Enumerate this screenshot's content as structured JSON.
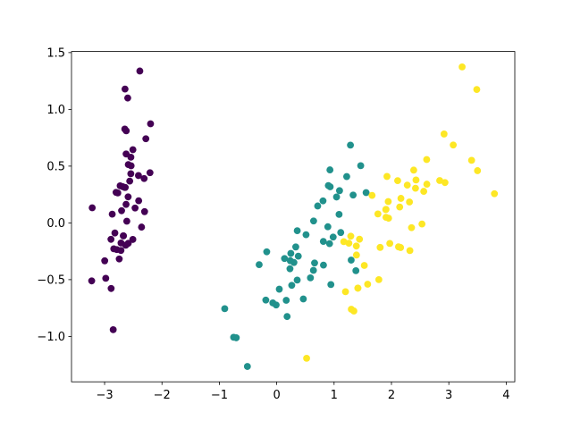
{
  "chart_data": {
    "type": "scatter",
    "xlim": [
      -3.577,
      4.15
    ],
    "ylim": [
      -1.4,
      1.51
    ],
    "xticks": [
      {
        "value": -3,
        "label": "−3"
      },
      {
        "value": -2,
        "label": "−2"
      },
      {
        "value": -1,
        "label": "−1"
      },
      0,
      1,
      2,
      3,
      4
    ],
    "yticks": [
      {
        "value": -1,
        "label": "−1.0"
      },
      {
        "value": -0.5,
        "label": "−0.5"
      },
      {
        "value": 0,
        "label": "0.0"
      },
      0.5,
      {
        "value": 1,
        "label": "1.0"
      },
      1.5
    ],
    "series": [
      {
        "color": "#440154",
        "x": [
          -2.684,
          -2.714,
          -2.889,
          -2.745,
          -2.729,
          -2.281,
          -2.821,
          -2.626,
          -2.886,
          -2.672,
          -2.507,
          -2.613,
          -2.787,
          -3.225,
          -2.644,
          -2.386,
          -2.623,
          -2.648,
          -2.199,
          -2.587,
          -2.311,
          -2.543,
          -3.216,
          -2.303,
          -2.356,
          -2.508,
          -2.469,
          -2.562,
          -2.64,
          -2.632,
          -2.588,
          -2.41,
          -2.648,
          -2.597,
          -2.673,
          -2.867,
          -2.625,
          -2.8,
          -2.98,
          -2.59,
          -2.77,
          -2.85,
          -2.998,
          -2.406,
          -2.209,
          -2.715,
          -2.538,
          -2.84,
          -2.542,
          -2.704
        ],
        "values": [
          0.319,
          -0.177,
          -0.145,
          -0.318,
          0.327,
          0.741,
          -0.089,
          0.163,
          -0.578,
          -0.114,
          0.645,
          0.015,
          -0.235,
          -0.511,
          1.179,
          1.338,
          0.811,
          0.312,
          0.873,
          0.514,
          0.391,
          0.433,
          0.133,
          0.099,
          -0.037,
          -0.146,
          0.131,
          0.368,
          0.312,
          -0.197,
          -0.18,
          0.417,
          0.827,
          1.1,
          -0.114,
          0.077,
          0.607,
          0.269,
          -0.488,
          0.229,
          0.264,
          -0.941,
          -0.334,
          0.195,
          0.442,
          -0.243,
          0.503,
          -0.228,
          0.579,
          0.107
        ]
      },
      {
        "color": "#21918c",
        "x": [
          1.285,
          0.932,
          1.464,
          0.181,
          1.087,
          0.64,
          1.095,
          -0.751,
          1.043,
          -0.01,
          -0.511,
          0.511,
          0.262,
          0.984,
          -0.174,
          0.928,
          0.66,
          0.236,
          0.944,
          0.045,
          1.116,
          0.358,
          1.298,
          0.921,
          0.714,
          0.9,
          1.332,
          1.558,
          0.813,
          -0.306,
          -0.068,
          -0.19,
          0.136,
          1.38,
          0.588,
          0.807,
          1.22,
          0.815,
          0.246,
          0.166,
          0.464,
          0.891,
          0.231,
          -0.705,
          0.357,
          0.332,
          0.376,
          0.643,
          -0.906,
          0.3
        ],
        "values": [
          0.685,
          0.318,
          0.504,
          -0.825,
          0.075,
          -0.418,
          0.284,
          -1.008,
          0.228,
          -0.723,
          -1.265,
          -0.104,
          -0.55,
          -0.125,
          -0.255,
          0.467,
          -0.353,
          -0.333,
          -0.543,
          -0.584,
          -0.085,
          -0.069,
          -0.328,
          -0.183,
          0.149,
          0.329,
          0.245,
          0.267,
          -0.163,
          -0.368,
          -0.705,
          -0.68,
          -0.314,
          -0.421,
          -0.484,
          0.194,
          0.408,
          -0.372,
          -0.269,
          -0.682,
          -0.67,
          -0.034,
          -0.404,
          -1.012,
          -0.504,
          -0.212,
          -0.293,
          0.017,
          -0.756,
          -0.349
        ]
      },
      {
        "color": "#fde725",
        "x": [
          2.532,
          1.415,
          2.617,
          1.971,
          2.35,
          3.397,
          0.521,
          2.933,
          2.321,
          2.917,
          1.662,
          1.803,
          2.165,
          1.345,
          1.585,
          1.905,
          1.95,
          3.487,
          3.795,
          1.3,
          2.428,
          1.199,
          3.5,
          1.388,
          2.276,
          2.614,
          1.258,
          1.291,
          2.123,
          2.388,
          2.841,
          3.232,
          2.159,
          1.443,
          1.78,
          3.077,
          2.144,
          1.905,
          1.169,
          2.108,
          2.314,
          1.922,
          1.415,
          2.563,
          2.419,
          1.944,
          1.527,
          1.764,
          1.901,
          1.39
        ],
        "values": [
          -0.01,
          -0.575,
          0.341,
          -0.181,
          -0.042,
          0.551,
          -1.193,
          0.355,
          -0.244,
          0.783,
          0.242,
          -0.216,
          0.216,
          -0.776,
          -0.54,
          0.119,
          0.041,
          1.175,
          0.257,
          -0.761,
          0.378,
          -0.606,
          0.46,
          -0.204,
          0.333,
          0.558,
          -0.179,
          -0.117,
          -0.211,
          0.465,
          0.373,
          1.374,
          -0.217,
          -0.144,
          -0.5,
          0.686,
          0.14,
          0.049,
          -0.165,
          0.372,
          0.184,
          0.409,
          -0.575,
          0.278,
          0.305,
          0.188,
          -0.375,
          0.079,
          0.117,
          -0.283
        ]
      }
    ]
  }
}
